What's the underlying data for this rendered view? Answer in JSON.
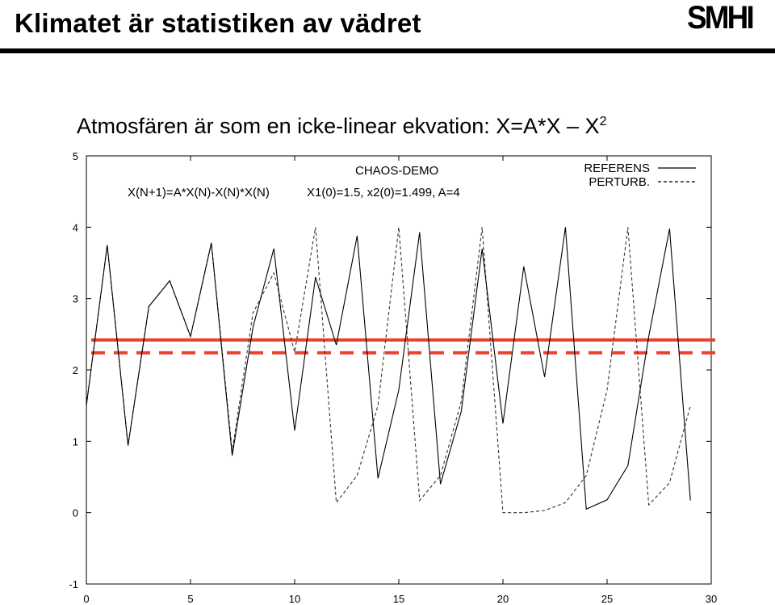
{
  "header": {
    "title": "Klimatet är statistiken av vädret",
    "logo_text": "SMHI",
    "subtitle": "Atmosfären är som en icke-linear ekvation: X=A*X – X",
    "subtitle_sup": "2"
  },
  "chart_data": {
    "type": "line",
    "title": "CHAOS-DEMO",
    "annotations": [
      "X(N+1)=A*X(N)-X(N)*X(N)",
      "X1(0)=1.5, x2(0)=1.499, A=4"
    ],
    "xlim": [
      0,
      30
    ],
    "ylim": [
      -1,
      5
    ],
    "x_ticks": [
      0,
      5,
      10,
      15,
      20,
      25,
      30
    ],
    "y_ticks": [
      -1,
      0,
      1,
      2,
      3,
      4,
      5
    ],
    "legend_position": "top-right",
    "grid": false,
    "series": [
      {
        "name": "REFERENS",
        "style": "solid",
        "color": "#000000",
        "x": [
          0,
          1,
          2,
          3,
          4,
          5,
          6,
          7,
          8,
          9,
          10,
          11,
          12,
          13,
          14,
          15,
          16,
          17,
          18,
          19,
          20,
          21,
          22,
          23,
          24,
          25,
          26,
          27,
          28,
          29
        ],
        "values": [
          1.5,
          3.75,
          0.94,
          2.89,
          3.25,
          2.47,
          3.78,
          0.8,
          2.6,
          3.7,
          1.15,
          3.3,
          2.35,
          3.88,
          0.48,
          1.72,
          3.93,
          0.4,
          1.42,
          3.7,
          1.25,
          3.45,
          1.9,
          4.0,
          0.05,
          0.18,
          0.66,
          2.47,
          3.98,
          0.17
        ]
      },
      {
        "name": "PERTURB.",
        "style": "dashed",
        "color": "#000000",
        "x": [
          0,
          1,
          2,
          3,
          4,
          5,
          6,
          7,
          8,
          9,
          10,
          11,
          12,
          13,
          14,
          15,
          16,
          17,
          18,
          19,
          20,
          21,
          22,
          23,
          24,
          25,
          26,
          27,
          28,
          29
        ],
        "values": [
          1.5,
          3.75,
          0.94,
          2.89,
          3.25,
          2.47,
          3.78,
          0.86,
          2.8,
          3.36,
          2.25,
          4.0,
          0.14,
          0.52,
          1.5,
          4.0,
          0.17,
          0.52,
          1.56,
          4.0,
          0.0,
          0.0,
          0.03,
          0.14,
          0.52,
          1.72,
          4.0,
          0.11,
          0.42,
          1.5
        ]
      }
    ],
    "reference_lines": [
      {
        "style": "solid",
        "color": "#e8412f",
        "y": 2.42
      },
      {
        "style": "dashed",
        "color": "#e8412f",
        "y": 2.24
      }
    ]
  }
}
